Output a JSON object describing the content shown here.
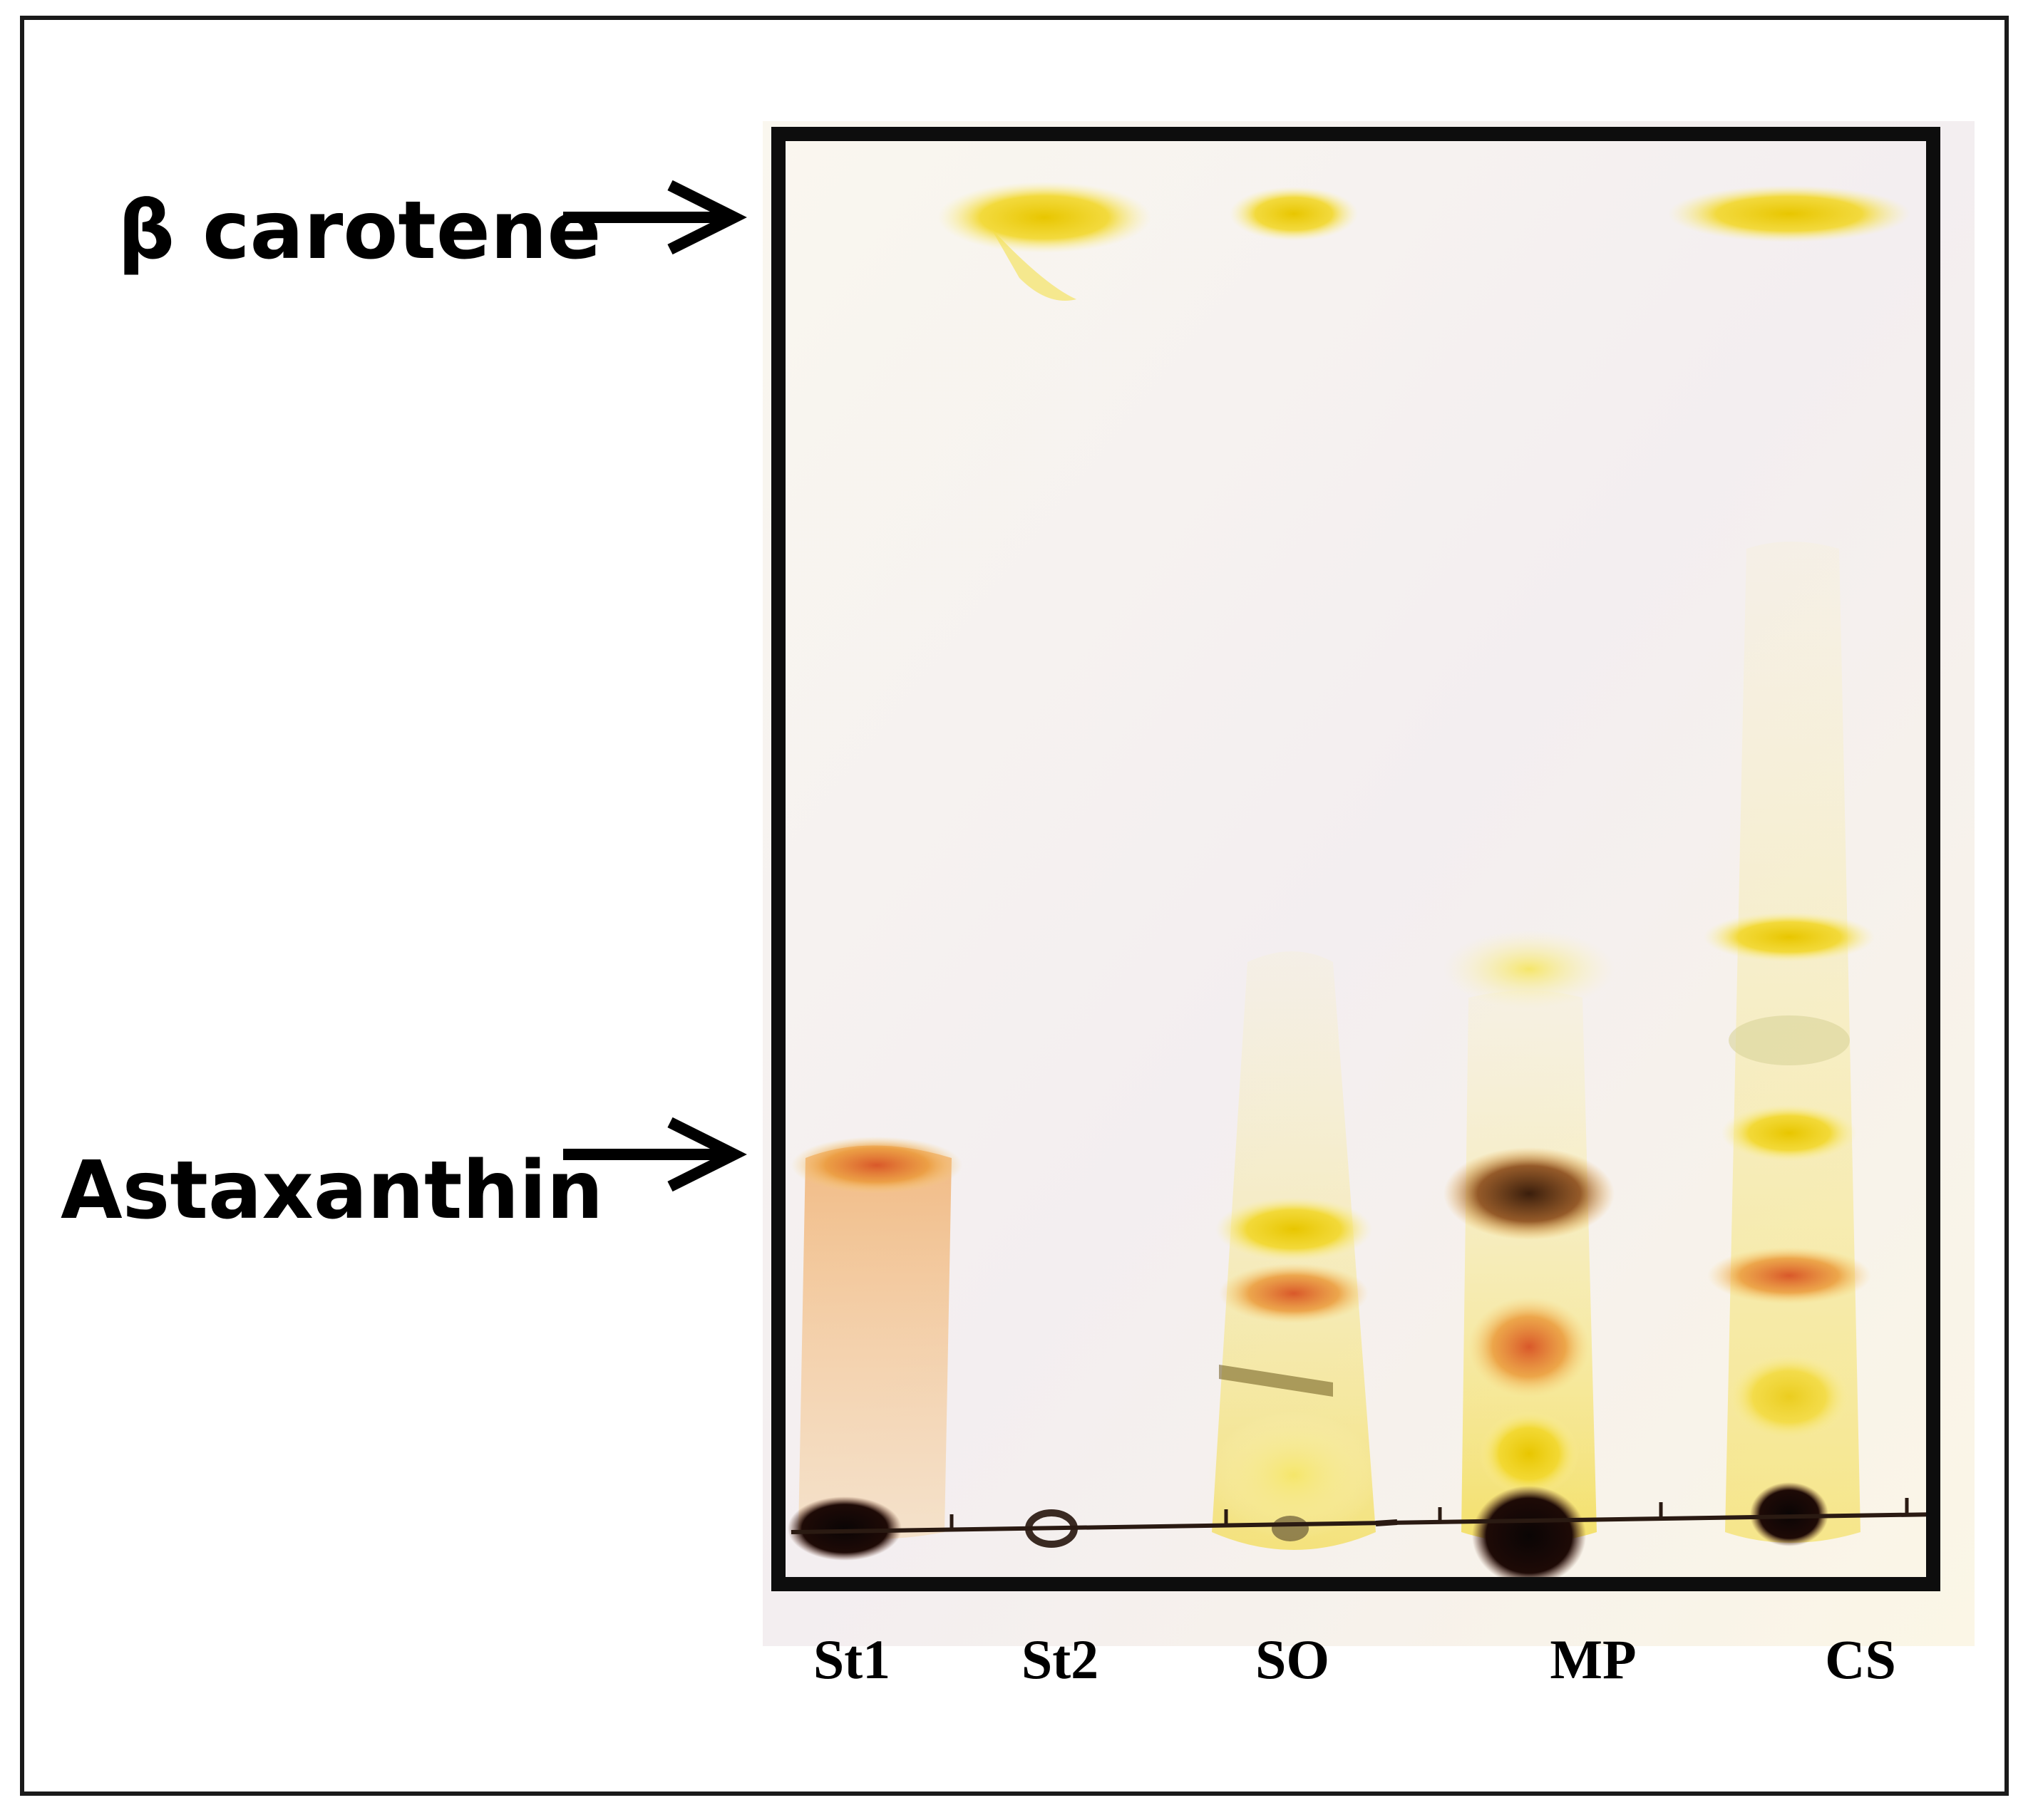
{
  "figure": {
    "labels": {
      "beta_carotene": "β carotene",
      "astaxanthin": "Astaxanthin"
    },
    "lanes": [
      {
        "key": "st1",
        "label": "St1"
      },
      {
        "key": "st2",
        "label": "St2"
      },
      {
        "key": "so",
        "label": "SO"
      },
      {
        "key": "mp",
        "label": "MP"
      },
      {
        "key": "cs",
        "label": "CS"
      }
    ],
    "colors": {
      "plate_background": "#f9f5ec",
      "plate_border": "#0d0d0d",
      "carotene_yellow": "#f2d21a",
      "astaxanthin_orange": "#e8903a",
      "dark_spot": "#1b0f0a"
    }
  }
}
